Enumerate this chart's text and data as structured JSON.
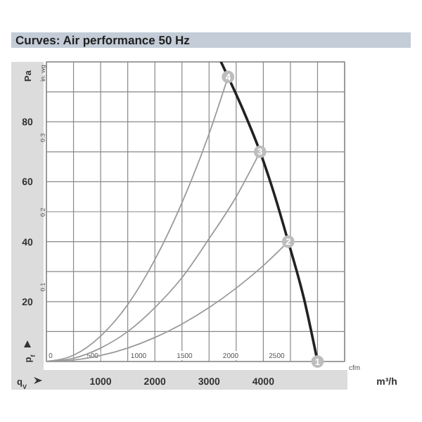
{
  "chart_data": {
    "type": "line",
    "title": "Curves: Air performance 50 Hz",
    "xlabel": "m³/h",
    "ylabel": "Pa",
    "x2label": "cfm",
    "y2label": "in. wg",
    "xlim": [
      0,
      5500
    ],
    "xticks": [
      {
        "value": 0,
        "label": null
      },
      {
        "value": 500,
        "label": null
      },
      1000,
      {
        "value": 1500,
        "label": null
      },
      2000,
      {
        "value": 2500,
        "label": null
      },
      3000,
      {
        "value": 3500,
        "label": null
      },
      4000,
      {
        "value": 4500,
        "label": null
      },
      {
        "value": 5000,
        "label": null
      },
      {
        "value": 5500,
        "label": null
      }
    ],
    "ylim": [
      0,
      100
    ],
    "yticks": [
      {
        "value": 0,
        "label": null
      },
      {
        "value": 10,
        "label": null
      },
      20,
      {
        "value": 30,
        "label": null
      },
      40,
      {
        "value": 50,
        "label": null
      },
      60,
      {
        "value": 70,
        "label": null
      },
      80,
      {
        "value": 90,
        "label": null
      },
      {
        "value": 100,
        "label": null
      }
    ],
    "x2lim": [
      0,
      3237
    ],
    "x2ticks": [
      0,
      500,
      1000,
      1500,
      2000,
      2500
    ],
    "y2lim": [
      0,
      0.4015
    ],
    "y2ticks": [
      0.1,
      0.2,
      0.3
    ],
    "grid": true,
    "line_style": "solid",
    "series": [
      {
        "color": "#222222",
        "x": [
          3220,
          3350,
          3650,
          3940,
          4200,
          4460,
          4750,
          5000
        ],
        "values": [
          100,
          95,
          83,
          70,
          56,
          40,
          21,
          0
        ]
      },
      {
        "color": "#9a9a9a",
        "x": [
          0,
          500,
          1000,
          1500,
          2000,
          2500,
          3000,
          3350
        ],
        "values": [
          0,
          2.1,
          8.5,
          19,
          34,
          53,
          76,
          95
        ]
      },
      {
        "color": "#9a9a9a",
        "x": [
          0,
          500,
          1000,
          1500,
          2000,
          2500,
          3000,
          3500,
          3940
        ],
        "values": [
          0,
          1.1,
          4.5,
          10,
          18,
          28,
          41,
          55,
          70
        ]
      },
      {
        "color": "#9a9a9a",
        "x": [
          0,
          500,
          1000,
          1500,
          2000,
          2500,
          3000,
          3500,
          4000,
          4460
        ],
        "values": [
          0,
          0.5,
          2,
          4.5,
          8,
          12.5,
          18,
          24.5,
          32,
          40
        ]
      }
    ],
    "annotations": [
      "p$_{f}$",
      "q$_{V}$",
      {
        "text": "1",
        "x": 5000,
        "y": 0
      },
      {
        "text": "2",
        "x": 4460,
        "y": 40
      },
      {
        "text": "3",
        "x": 3940,
        "y": 70
      },
      {
        "text": "4",
        "x": 3350,
        "y": 95
      }
    ]
  }
}
